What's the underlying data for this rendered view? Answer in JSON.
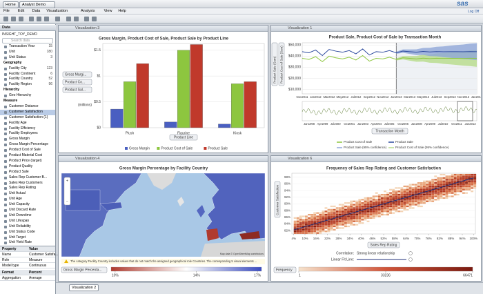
{
  "toolbar": {
    "home": "Home",
    "project": "Analyst Demo",
    "menu": [
      "File",
      "Edit",
      "Data",
      "Visualization",
      "Analysis",
      "View",
      "Help"
    ],
    "logo": "sas",
    "logoff": "Log Off"
  },
  "data_panel": {
    "title": "Data",
    "source": "INSIGHT_TOY_DEMO",
    "search": "Search data",
    "rows": [
      {
        "text": "Transaction Year",
        "count": "15"
      },
      {
        "text": "Unit",
        "count": "180"
      },
      {
        "text": "Unit Status",
        "count": "3"
      },
      {
        "heading": "Geography"
      },
      {
        "text": "Facility City",
        "count": "123"
      },
      {
        "text": "Facility Continent",
        "count": "6"
      },
      {
        "text": "Facility Country",
        "count": "52"
      },
      {
        "text": "Facility Region",
        "count": "96"
      },
      {
        "heading": "Hierarchy"
      },
      {
        "text": "Geo Hierarchy"
      },
      {
        "heading": "Measure"
      },
      {
        "text": "Customer Distance"
      },
      {
        "text": "Customer Satisfaction",
        "selected": true
      },
      {
        "text": "Customer Satisfaction (1)"
      },
      {
        "text": "Facility Age"
      },
      {
        "text": "Facility Efficiency"
      },
      {
        "text": "Facility Employees"
      },
      {
        "text": "Gross Margin"
      },
      {
        "text": "Gross Margin Percentage"
      },
      {
        "text": "Product Cost of Sale"
      },
      {
        "text": "Product Material Cost"
      },
      {
        "text": "Product Price (target)"
      },
      {
        "text": "Product Quality"
      },
      {
        "text": "Product Sale"
      },
      {
        "text": "Sales Rep Customer B..."
      },
      {
        "text": "Sales Rep Customers"
      },
      {
        "text": "Sales Rep Rating"
      },
      {
        "text": "Unit Actual"
      },
      {
        "text": "Unit Age"
      },
      {
        "text": "Unit Capacity"
      },
      {
        "text": "Unit Discard Rate"
      },
      {
        "text": "Unit Downtime"
      },
      {
        "text": "Unit Lifespan"
      },
      {
        "text": "Unit Reliability"
      },
      {
        "text": "Unit Status Code"
      },
      {
        "text": "Unit Target"
      },
      {
        "text": "Unit Yield Rate"
      }
    ]
  },
  "properties": {
    "header": [
      "Property",
      "Value"
    ],
    "rows": [
      [
        "Name",
        "Customer Satisfa..."
      ],
      [
        "Role",
        "Measure"
      ],
      [
        "Model type",
        "Continuous"
      ]
    ],
    "format": [
      "Format",
      "Percent"
    ],
    "rows2": [
      [
        "Aggregation",
        "Average"
      ]
    ]
  },
  "bottom_tab": "Visualization 2",
  "visualizations": [
    {
      "tab": "Visualization 3",
      "chart_data": {
        "type": "bar",
        "title": "Gross Margin, Product Cost of Sale, Product Sale by Product Line",
        "categories": [
          "Plush",
          "Figurine",
          "Kiosk"
        ],
        "series": [
          {
            "name": "Gross Margin",
            "color": "#4a5fc1",
            "values": [
              0.36,
              0.11,
              0.07
            ]
          },
          {
            "name": "Product Cost of Sale",
            "color": "#8dc63f",
            "values": [
              0.89,
              1.5,
              0.85
            ]
          },
          {
            "name": "Product Sale",
            "color": "#c0392b",
            "values": [
              1.24,
              1.61,
              0.89
            ]
          }
        ],
        "ylim": [
          0,
          1.63
        ],
        "yticks": [
          {
            "value": 0,
            "label": "$0"
          },
          {
            "value": 0.5,
            "label": "$0.5"
          },
          {
            "value": 1,
            "label": "$1"
          },
          {
            "value": 1.5,
            "label": "$1.5"
          }
        ],
        "y_unit": "(millions)",
        "role_buttons": [
          "Gross Margi...",
          "Product Co...",
          "Product Sal..."
        ],
        "x_button": "Product Line",
        "grid": true
      }
    },
    {
      "tab": "Visualization 1",
      "chart_data": {
        "type": "line",
        "title": "Product Sale, Product Cost of Sale by Transaction Month",
        "categories": [
          "Nov2011",
          null,
          "Jan2012",
          null,
          "Mar2012",
          null,
          "May2012",
          null,
          "Jul2012",
          null,
          "Sep2012",
          null,
          "Nov2012",
          null,
          "Jan2013",
          null,
          "Mar2013",
          null,
          "May2013",
          null,
          "Jul2013",
          null,
          "Sep2013",
          null,
          "Nov2013",
          null,
          "Jan2014"
        ],
        "series": [
          {
            "name": "Product Cost of Sale",
            "color": "#8dc63f",
            "values": [
              38000,
              37000,
              39500,
              35000,
              40000,
              38500,
              37500,
              39000,
              36500,
              40500,
              35500,
              38000,
              37500,
              39000,
              37000,
              38500,
              38000,
              37500,
              38200,
              37800,
              38100,
              37900,
              38000,
              38000,
              37900,
              38100,
              38000
            ]
          },
          {
            "name": "Product Sale",
            "color": "#2c4a9e",
            "values": [
              44000,
              43000,
              45500,
              40500,
              46000,
              44500,
              43500,
              45000,
              42000,
              46500,
              41000,
              44000,
              43500,
              45000,
              43000,
              44500,
              44000,
              43500,
              44200,
              43800,
              44100,
              43900,
              44000,
              44000,
              43900,
              44100,
              44000
            ]
          }
        ],
        "forecast_start": "Jan2013",
        "ylim": [
          6000,
          52000
        ],
        "yticks": [
          {
            "value": 10000,
            "label": "$10,000"
          },
          {
            "value": 20000,
            "label": "$20,000"
          },
          {
            "value": 30000,
            "label": "$30,000"
          },
          {
            "value": 40000,
            "label": "$40,000"
          },
          {
            "value": 50000,
            "label": "$50,000"
          }
        ],
        "forecast_legend": [
          "Product Sale (95% confidence)",
          "Product Cost of Sale (95% confidence)"
        ],
        "y_buttons": [
          "Product Sale (Sum)",
          "Product Cost of Sale (Sum)"
        ],
        "x_button": "Transaction Month",
        "overview_labels": [
          "Jan1998",
          "Apr1999",
          "Jul2000",
          "Oct2001",
          "Jan2003",
          "Apr2004",
          "Jul2005",
          "Oct2006",
          "Jan2008",
          "Apr2009",
          "Jul2010",
          "Oct2011",
          "Jan2013"
        ]
      }
    },
    {
      "tab": "Visualization 4",
      "chart_data": {
        "type": "map",
        "title": "Gross Margin Percentage by Facility Country",
        "note": "The category Facility Country includes values that do not match the assigned geographical role Countries. The corresponding 5 visual elements ...",
        "color_button": "Gross Margin Percenta...",
        "color_range": [
          9.8,
          17.2
        ],
        "color_ticks": [
          {
            "value": 10,
            "label": "10%"
          },
          {
            "value": 14,
            "label": "14%"
          },
          {
            "value": 17,
            "label": "17%"
          }
        ],
        "attribution": "Map data © OpenStreetMap contributors"
      }
    },
    {
      "tab": "Visualization 6",
      "chart_data": {
        "type": "heatmap",
        "title": "Frequency of Sales Rep Rating and Customer Satisfaction",
        "xlim": [
          3,
          101
        ],
        "xticks": [
          {
            "value": 4,
            "label": "4%"
          },
          {
            "value": 10,
            "label": "10%"
          },
          {
            "value": 16,
            "label": "16%"
          },
          {
            "value": 22,
            "label": "22%"
          },
          {
            "value": 28,
            "label": "28%"
          },
          {
            "value": 34,
            "label": "34%"
          },
          {
            "value": 40,
            "label": "40%"
          },
          {
            "value": 46,
            "label": "46%"
          },
          {
            "value": 52,
            "label": "52%"
          },
          {
            "value": 58,
            "label": "58%"
          },
          {
            "value": 64,
            "label": "64%"
          },
          {
            "value": 70,
            "label": "70%"
          },
          {
            "value": 76,
            "label": "76%"
          },
          {
            "value": 82,
            "label": "82%"
          },
          {
            "value": 88,
            "label": "88%"
          },
          {
            "value": 94,
            "label": "94%"
          },
          {
            "value": 100,
            "label": "100%"
          }
        ],
        "ylim": [
          81,
          99.2
        ],
        "yticks": [
          {
            "value": 82,
            "label": "82%"
          },
          {
            "value": 84,
            "label": "84%"
          },
          {
            "value": 86,
            "label": "86%"
          },
          {
            "value": 88,
            "label": "88%"
          },
          {
            "value": 90,
            "label": "90%"
          },
          {
            "value": 92,
            "label": "92%"
          },
          {
            "value": 94,
            "label": "94%"
          },
          {
            "value": 96,
            "label": "96%"
          },
          {
            "value": 98,
            "label": "98%"
          }
        ],
        "y_button": "Customer Satisfaction",
        "x_button": "Sales Rep Rating",
        "correlation_label": "Correlation:",
        "correlation": "Strong linear relationship",
        "fit_label": "Linear Fit Line:",
        "color_button": "Frequency",
        "color_ticks": [
          1,
          33236,
          66471
        ]
      }
    }
  ]
}
